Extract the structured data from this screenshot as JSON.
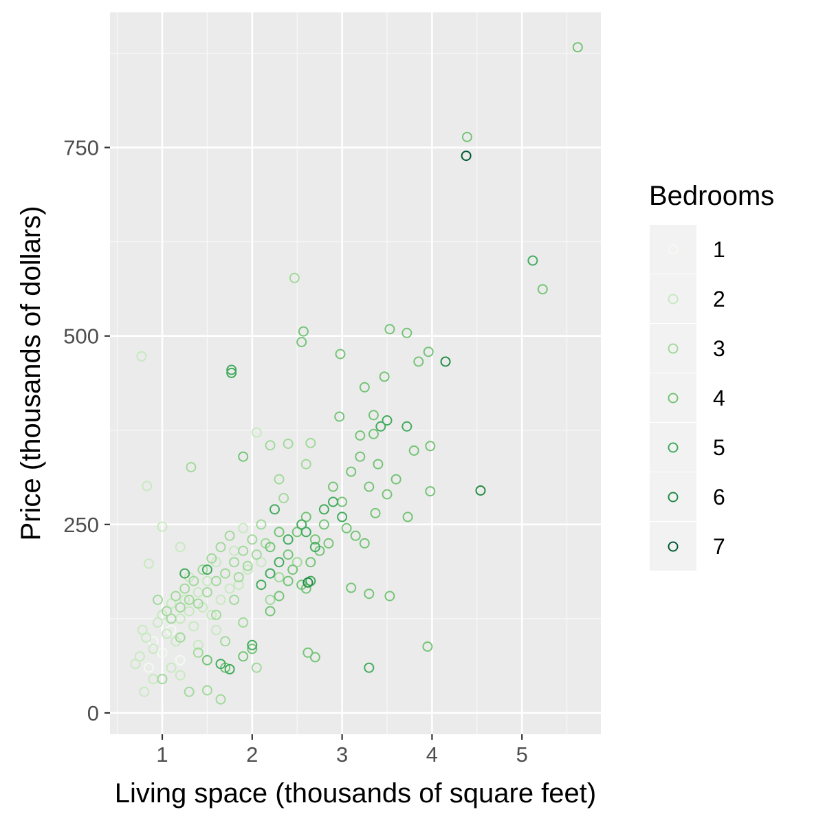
{
  "chart_data": {
    "type": "scatter",
    "title": "",
    "xlabel": "Living space (thousands of square feet)",
    "ylabel": "Price (thousands of dollars)",
    "xlim": [
      0.5,
      5.9
    ],
    "ylim": [
      -25,
      935
    ],
    "x_ticks": [
      1,
      2,
      3,
      4,
      5
    ],
    "y_ticks": [
      0,
      250,
      500,
      750
    ],
    "x_tick_labels": [
      "1",
      "2",
      "3",
      "4",
      "5"
    ],
    "y_tick_labels": [
      "0",
      "250",
      "500",
      "750"
    ],
    "grid": true,
    "marker": "hollow-circle",
    "legend": {
      "title": "Bedrooms",
      "placement": "right",
      "entries": [
        "1",
        "2",
        "3",
        "4",
        "5",
        "6",
        "7"
      ]
    },
    "colors": {
      "1": "#f3faf1",
      "2": "#c7e9c0",
      "3": "#a1d99b",
      "4": "#74c476",
      "5": "#41ab5d",
      "6": "#238b45",
      "7": "#005a32"
    },
    "panel_background": "#ebebeb",
    "legend_key_background": "#f2f2f2",
    "series": [
      {
        "name": "1",
        "points": [
          [
            0.9,
            95
          ],
          [
            1.0,
            80
          ],
          [
            1.1,
            110
          ],
          [
            1.2,
            70
          ],
          [
            0.85,
            60
          ]
        ]
      },
      {
        "name": "2",
        "points": [
          [
            0.77,
            473
          ],
          [
            0.83,
            301
          ],
          [
            0.85,
            198
          ],
          [
            0.78,
            110
          ],
          [
            0.82,
            100
          ],
          [
            0.9,
            85
          ],
          [
            0.95,
            120
          ],
          [
            1.0,
            130
          ],
          [
            1.05,
            105
          ],
          [
            1.1,
            145
          ],
          [
            1.15,
            95
          ],
          [
            1.2,
            125
          ],
          [
            1.25,
            150
          ],
          [
            1.3,
            135
          ],
          [
            1.35,
            115
          ],
          [
            1.4,
            160
          ],
          [
            1.45,
            140
          ],
          [
            1.5,
            175
          ],
          [
            1.55,
            130
          ],
          [
            1.6,
            200
          ],
          [
            1.65,
            150
          ],
          [
            1.7,
            185
          ],
          [
            1.75,
            165
          ],
          [
            1.8,
            215
          ],
          [
            1.85,
            170
          ],
          [
            1.9,
            245
          ],
          [
            1.95,
            190
          ],
          [
            2.05,
            372
          ],
          [
            1.0,
            247
          ],
          [
            1.2,
            220
          ],
          [
            1.3,
            180
          ],
          [
            0.7,
            65
          ],
          [
            0.75,
            75
          ],
          [
            0.8,
            28
          ],
          [
            0.9,
            45
          ],
          [
            1.1,
            60
          ],
          [
            1.2,
            50
          ],
          [
            1.4,
            90
          ],
          [
            1.6,
            110
          ],
          [
            2.1,
            200
          ]
        ]
      },
      {
        "name": "3",
        "points": [
          [
            1.32,
            326
          ],
          [
            0.95,
            150
          ],
          [
            1.05,
            135
          ],
          [
            1.1,
            125
          ],
          [
            1.15,
            155
          ],
          [
            1.2,
            140
          ],
          [
            1.25,
            165
          ],
          [
            1.3,
            150
          ],
          [
            1.35,
            175
          ],
          [
            1.4,
            145
          ],
          [
            1.45,
            190
          ],
          [
            1.5,
            160
          ],
          [
            1.55,
            205
          ],
          [
            1.6,
            175
          ],
          [
            1.65,
            220
          ],
          [
            1.7,
            185
          ],
          [
            1.75,
            235
          ],
          [
            1.8,
            200
          ],
          [
            1.85,
            180
          ],
          [
            1.9,
            215
          ],
          [
            1.95,
            195
          ],
          [
            2.0,
            230
          ],
          [
            2.05,
            210
          ],
          [
            2.1,
            250
          ],
          [
            2.15,
            225
          ],
          [
            2.2,
            355
          ],
          [
            2.3,
            310
          ],
          [
            2.35,
            285
          ],
          [
            2.4,
            357
          ],
          [
            2.47,
            577
          ],
          [
            2.65,
            358
          ],
          [
            2.6,
            330
          ],
          [
            1.5,
            30
          ],
          [
            1.65,
            18
          ],
          [
            2.05,
            60
          ],
          [
            1.3,
            28
          ],
          [
            1.0,
            45
          ],
          [
            1.2,
            100
          ],
          [
            1.7,
            95
          ],
          [
            1.9,
            120
          ],
          [
            2.2,
            150
          ],
          [
            2.3,
            180
          ],
          [
            2.5,
            200
          ],
          [
            1.4,
            80
          ],
          [
            1.6,
            130
          ],
          [
            1.8,
            150
          ]
        ]
      },
      {
        "name": "4",
        "points": [
          [
            1.9,
            340
          ],
          [
            2.55,
            492
          ],
          [
            2.57,
            506
          ],
          [
            2.98,
            476
          ],
          [
            2.97,
            393
          ],
          [
            3.25,
            432
          ],
          [
            3.35,
            395
          ],
          [
            3.47,
            446
          ],
          [
            3.53,
            509
          ],
          [
            3.72,
            504
          ],
          [
            3.85,
            466
          ],
          [
            3.96,
            479
          ],
          [
            3.98,
            354
          ],
          [
            4.39,
            764
          ],
          [
            5.23,
            562
          ],
          [
            3.8,
            348
          ],
          [
            3.73,
            260
          ],
          [
            3.98,
            294
          ],
          [
            3.95,
            88
          ],
          [
            2.62,
            80
          ],
          [
            2.7,
            74
          ],
          [
            3.1,
            166
          ],
          [
            3.3,
            158
          ],
          [
            3.53,
            155
          ],
          [
            3.37,
            265
          ],
          [
            2.5,
            240
          ],
          [
            2.6,
            260
          ],
          [
            2.7,
            230
          ],
          [
            2.8,
            250
          ],
          [
            2.9,
            300
          ],
          [
            3.0,
            280
          ],
          [
            3.1,
            320
          ],
          [
            3.2,
            340
          ],
          [
            3.3,
            300
          ],
          [
            3.4,
            330
          ],
          [
            3.5,
            290
          ],
          [
            3.6,
            310
          ],
          [
            2.2,
            220
          ],
          [
            2.3,
            240
          ],
          [
            2.4,
            210
          ],
          [
            2.45,
            190
          ],
          [
            2.55,
            170
          ],
          [
            2.65,
            200
          ],
          [
            2.75,
            215
          ],
          [
            2.85,
            225
          ],
          [
            3.05,
            245
          ],
          [
            3.15,
            235
          ],
          [
            3.25,
            225
          ],
          [
            1.9,
            75
          ],
          [
            2.0,
            85
          ],
          [
            1.7,
            60
          ],
          [
            1.5,
            70
          ],
          [
            2.2,
            135
          ],
          [
            2.3,
            155
          ],
          [
            2.4,
            175
          ],
          [
            2.6,
            165
          ],
          [
            3.35,
            370
          ],
          [
            3.2,
            368
          ]
        ]
      },
      {
        "name": "5",
        "points": [
          [
            1.77,
            455
          ],
          [
            1.77,
            451
          ],
          [
            5.12,
            600
          ],
          [
            3.43,
            380
          ],
          [
            3.5,
            388
          ],
          [
            3.72,
            380
          ],
          [
            2.55,
            250
          ],
          [
            2.6,
            240
          ],
          [
            2.7,
            220
          ],
          [
            2.8,
            270
          ],
          [
            2.4,
            230
          ],
          [
            2.3,
            200
          ],
          [
            2.2,
            185
          ],
          [
            2.1,
            170
          ],
          [
            1.25,
            185
          ],
          [
            1.5,
            190
          ],
          [
            3.3,
            60
          ],
          [
            1.65,
            65
          ],
          [
            1.75,
            58
          ],
          [
            2.0,
            90
          ],
          [
            2.9,
            280
          ],
          [
            3.0,
            260
          ],
          [
            2.65,
            175
          ],
          [
            2.25,
            270
          ]
        ]
      },
      {
        "name": "6",
        "points": [
          [
            4.15,
            466
          ],
          [
            4.54,
            295
          ],
          [
            2.62,
            173
          ]
        ]
      },
      {
        "name": "7",
        "points": [
          [
            4.38,
            739
          ]
        ]
      }
    ],
    "extra_top_point": {
      "bedrooms": "4",
      "x": 5.62,
      "y": 883
    }
  }
}
